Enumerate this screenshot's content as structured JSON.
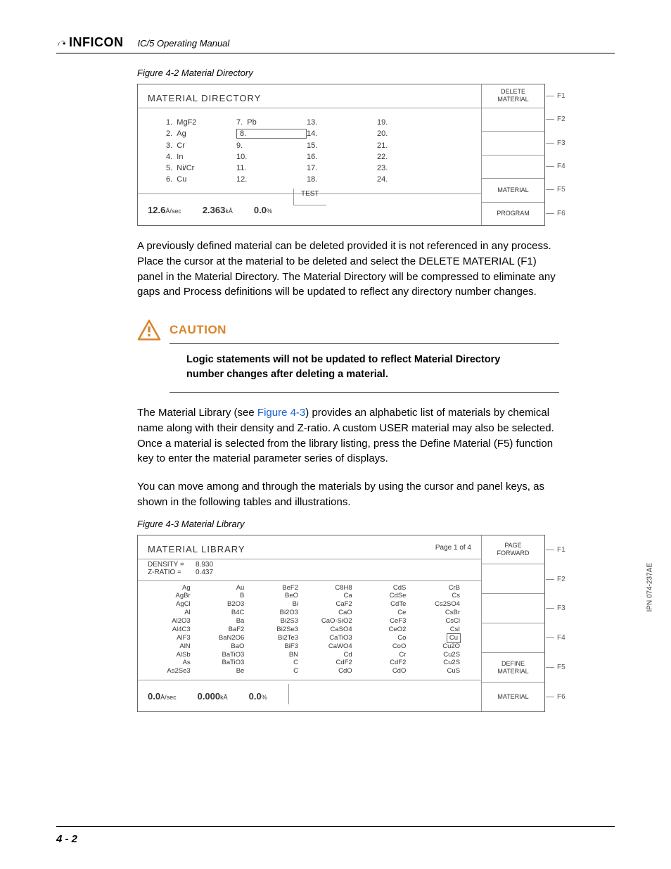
{
  "header": {
    "brand": "INFICON",
    "manual_title": "IC/5 Operating Manual"
  },
  "figure1": {
    "caption": "Figure 4-2  Material Directory",
    "screen_title": "MATERIAL DIRECTORY",
    "materials": [
      {
        "n": "1.",
        "name": "MgF2"
      },
      {
        "n": "2.",
        "name": "Ag"
      },
      {
        "n": "3.",
        "name": "Cr"
      },
      {
        "n": "4.",
        "name": "In"
      },
      {
        "n": "5.",
        "name": "Ni/Cr"
      },
      {
        "n": "6.",
        "name": "Cu"
      }
    ],
    "col2": [
      {
        "n": "7.",
        "name": "Pb"
      },
      {
        "n": "8.",
        "name": ""
      },
      {
        "n": "9.",
        "name": ""
      },
      {
        "n": "10.",
        "name": ""
      },
      {
        "n": "11.",
        "name": ""
      },
      {
        "n": "12.",
        "name": ""
      }
    ],
    "col3_nums": [
      "13.",
      "14.",
      "15.",
      "16.",
      "17.",
      "18."
    ],
    "col4_nums": [
      "19.",
      "20.",
      "21.",
      "22.",
      "23.",
      "24."
    ],
    "status": {
      "rate": "12.6",
      "rate_unit": "Å/sec",
      "thick": "2.363",
      "thick_unit": "kÅ",
      "pct": "0.0",
      "pct_unit": "%",
      "test": "TEST"
    },
    "fbuttons": [
      "DELETE\nMATERIAL",
      "",
      "",
      "",
      "MATERIAL",
      "PROGRAM"
    ],
    "fkeys": [
      "F1",
      "F2",
      "F3",
      "F4",
      "F5",
      "F6"
    ]
  },
  "para1": "A previously defined material can be deleted provided it is not referenced in any process. Place the cursor at the material to be deleted and select the DELETE MATERIAL (F1) panel in the Material Directory. The Material Directory will be compressed to eliminate any gaps and Process definitions will be updated to reflect any directory number changes.",
  "caution": {
    "title": "CAUTION",
    "text": "Logic statements will not be updated to reflect Material Directory number changes after deleting a material."
  },
  "para2_pre": "The Material Library (see ",
  "para2_link": "Figure 4-3",
  "para2_post": ") provides an alphabetic list of materials by chemical name along with their density and Z-ratio. A custom USER material may also be selected. Once a material is selected from the library listing, press the Define Material (F5) function key to enter the material parameter series of displays.",
  "para3": "You can move among and through the materials by using the cursor and panel keys, as shown in the following tables and illustrations.",
  "figure2": {
    "caption": "Figure 4-3  Material Library",
    "screen_title": "MATERIAL LIBRARY",
    "page_label": "Page 1 of 4",
    "density_lbl": "DENSITY =",
    "density_val": "8.930",
    "zratio_lbl": "Z-RATIO =",
    "zratio_val": "0.437",
    "cols": [
      [
        "Ag",
        "AgBr",
        "AgCl",
        "Al",
        "Al2O3",
        "Al4C3",
        "AlF3",
        "AlN",
        "AlSb",
        "As",
        "As2Se3"
      ],
      [
        "Au",
        "B",
        "B2O3",
        "B4C",
        "Ba",
        "BaF2",
        "BaN2O6",
        "BaO",
        "BaTiO3",
        "BaTiO3",
        "Be"
      ],
      [
        "BeF2",
        "BeO",
        "Bi",
        "Bi2O3",
        "Bi2S3",
        "Bi2Se3",
        "Bi2Te3",
        "BiF3",
        "BN",
        "C",
        "C"
      ],
      [
        "C8H8",
        "Ca",
        "CaF2",
        "CaO",
        "CaO-SiO2",
        "CaSO4",
        "CaTiO3",
        "CaWO4",
        "Cd",
        "CdF2",
        "CdO"
      ],
      [
        "CdS",
        "CdSe",
        "CdTe",
        "Ce",
        "CeF3",
        "CeO2",
        "Co",
        "CoO",
        "Cr",
        "CdF2",
        "CdO"
      ],
      [
        "CrB",
        "Cs",
        "Cs2SO4",
        "CsBr",
        "CsCl",
        "CsI",
        "Cu",
        "Cu2O",
        "Cu2S",
        "Cu2S",
        "CuS"
      ]
    ],
    "selected": {
      "col": 5,
      "row": 6
    },
    "status": {
      "rate": "0.0",
      "rate_unit": "Å/sec",
      "thick": "0.000",
      "thick_unit": "kÅ",
      "pct": "0.0",
      "pct_unit": "%"
    },
    "fbuttons": [
      "PAGE\nFORWARD",
      "",
      "",
      "",
      "DEFINE\nMATERIAL",
      "MATERIAL"
    ],
    "fkeys": [
      "F1",
      "F2",
      "F3",
      "F4",
      "F5",
      "F6"
    ]
  },
  "page_number": "4 - 2",
  "side_code": "IPN 074-237AE"
}
